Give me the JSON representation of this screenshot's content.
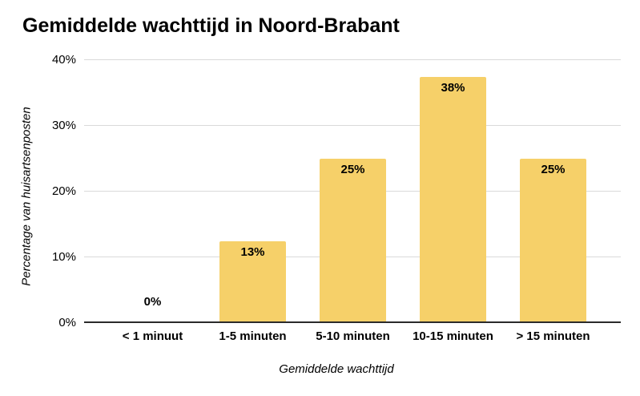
{
  "page": {
    "background": "#FFFFFF"
  },
  "chart_data": {
    "type": "bar",
    "title": "Gemiddelde wachttijd in Noord-Brabant",
    "xlabel": "Gemiddelde wachttijd",
    "ylabel": "Percentage van huisartsenposten",
    "categories": [
      "< 1 minuut",
      "1-5 minuten",
      "5-10 minuten",
      "10-15 minuten",
      "> 15 minuten"
    ],
    "values": [
      0,
      12.5,
      25,
      37.5,
      25
    ],
    "value_labels": [
      "0%",
      "13%",
      "25%",
      "38%",
      "25%"
    ],
    "ylim": [
      0,
      40
    ],
    "ytick_values": [
      0,
      10,
      20,
      30,
      40
    ],
    "ytick_labels": [
      "0%",
      "10%",
      "20%",
      "30%",
      "40%"
    ],
    "grid": true,
    "legend": "none",
    "colors": {
      "bar": "#F6D069",
      "data_label": "#000000",
      "gridline": "#DADADA",
      "axis_line": "#2B2B2B",
      "text": "#000000",
      "background": "#FFFFFF"
    }
  }
}
